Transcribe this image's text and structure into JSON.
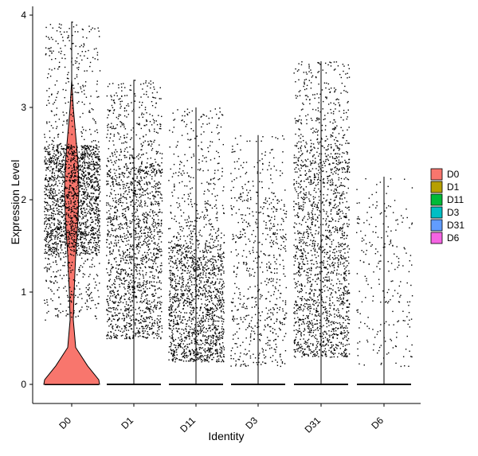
{
  "chart_data": {
    "type": "violin",
    "title": "",
    "xlabel": "Identity",
    "ylabel": "Expression Level",
    "ylim": [
      0,
      4
    ],
    "y_ticks": [
      0,
      1,
      2,
      3,
      4
    ],
    "categories": [
      "D0",
      "D1",
      "D11",
      "D3",
      "D31",
      "D6"
    ],
    "legend": {
      "placement": "right",
      "entries": [
        "D0",
        "D1",
        "D11",
        "D3",
        "D31",
        "D6"
      ]
    },
    "grid": false,
    "series": [
      {
        "name": "D0",
        "color": "#F8766D",
        "max": 3.93,
        "points_in_dense_band": "high",
        "dense_band": [
          1.4,
          2.6
        ],
        "approx_zero_fraction": 0.2
      },
      {
        "name": "D1",
        "color": "#B79F00",
        "max": 3.3,
        "dense_band": [
          0.5,
          2.3
        ]
      },
      {
        "name": "D11",
        "color": "#00BA38",
        "max": 3.0,
        "dense_band": [
          0.25,
          1.5
        ]
      },
      {
        "name": "D3",
        "color": "#00BFC4",
        "max": 2.7,
        "dense_band": [
          0.2,
          2.0
        ]
      },
      {
        "name": "D31",
        "color": "#619CFF",
        "max": 3.5,
        "dense_band": [
          0.3,
          2.4
        ]
      },
      {
        "name": "D6",
        "color": "#F564E3",
        "max": 2.25,
        "dense_band": [
          0.2,
          1.8
        ]
      }
    ]
  }
}
